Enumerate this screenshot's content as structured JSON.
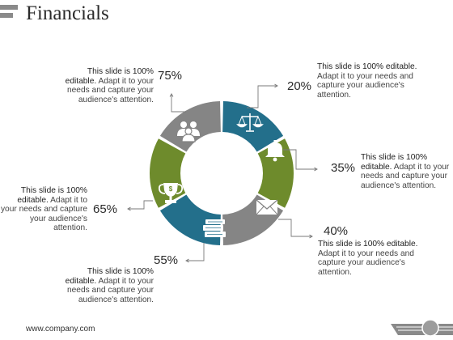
{
  "title": "Financials",
  "footer": "www.company.com",
  "colors": {
    "blue": "#236f8b",
    "green": "#6e8b2c",
    "gray": "#858585",
    "line": "#7a7a7a"
  },
  "segments": [
    {
      "percent": "20%",
      "color": "blue",
      "icon": "scales-icon",
      "text": {
        "bold": "This slide is 100% editable.",
        "rest": " Adapt it to your needs and capture your audience's attention."
      }
    },
    {
      "percent": "35%",
      "color": "green",
      "icon": "bell-icon",
      "text": {
        "bold": "This slide is 100% editable.",
        "rest": " Adapt it to your needs and capture your audience's attention."
      }
    },
    {
      "percent": "40%",
      "color": "gray",
      "icon": "envelope-icon",
      "text": {
        "bold": "This slide is 100% editable.",
        "rest": " Adapt it to your needs and capture your audience's attention."
      }
    },
    {
      "percent": "55%",
      "color": "blue",
      "icon": "books-icon",
      "text": {
        "bold": "This slide is 100% editable.",
        "rest": " Adapt it to your needs and capture your audience's attention."
      }
    },
    {
      "percent": "65%",
      "color": "green",
      "icon": "trophy-icon",
      "text": {
        "bold": "This slide is 100% editable.",
        "rest": " Adapt it to your needs and capture your audience's attention."
      }
    },
    {
      "percent": "75%",
      "color": "gray",
      "icon": "people-icon",
      "text": {
        "bold": "This slide is 100% editable.",
        "rest": " Adapt it to your needs and capture your audience's attention."
      }
    }
  ]
}
